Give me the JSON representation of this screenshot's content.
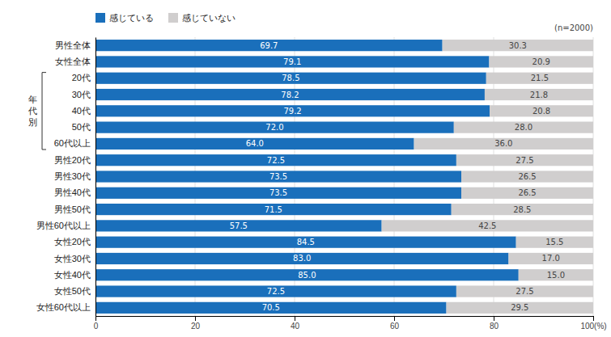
{
  "chart_data": {
    "type": "bar",
    "orientation": "horizontal",
    "stacked": true,
    "data_labels": true,
    "grid": true,
    "legend": "top-left",
    "categories": [
      "男性全体",
      "女性全体",
      "20代",
      "30代",
      "40代",
      "50代",
      "60代以上",
      "男性20代",
      "男性30代",
      "男性40代",
      "男性50代",
      "男性60代以上",
      "女性20代",
      "女性30代",
      "女性40代",
      "女性50代",
      "女性60代以上"
    ],
    "series": [
      {
        "name": "感じている",
        "color": "#1a6fbb",
        "values": [
          69.7,
          79.1,
          78.5,
          78.2,
          79.2,
          72.0,
          64.0,
          72.5,
          73.5,
          73.5,
          71.5,
          57.5,
          84.5,
          83.0,
          85.0,
          72.5,
          70.5
        ],
        "value_labels": [
          "69.7",
          "79.1",
          "78.5",
          "78.2",
          "79.2",
          "72.0",
          "64.0",
          "72.5",
          "73.5",
          "73.5",
          "71.5",
          "57.5",
          "84.5",
          "83.0",
          "85.0",
          "72.5",
          "70.5"
        ]
      },
      {
        "name": "感じていない",
        "color": "#d0cece",
        "values": [
          30.3,
          20.9,
          21.5,
          21.8,
          20.8,
          28.0,
          36.0,
          27.5,
          26.5,
          26.5,
          28.5,
          42.5,
          15.5,
          17.0,
          15.0,
          27.5,
          29.5
        ],
        "value_labels": [
          "30.3",
          "20.9",
          "21.5",
          "21.8",
          "20.8",
          "28.0",
          "36.0",
          "27.5",
          "26.5",
          "26.5",
          "28.5",
          "42.5",
          "15.5",
          "17.0",
          "15.0",
          "27.5",
          "29.5"
        ]
      }
    ],
    "xlim": [
      0,
      100
    ],
    "xticks": [
      0,
      20,
      40,
      60,
      80,
      {
        "value": 100,
        "label": "100(%)"
      }
    ],
    "annotations": [
      {
        "text": "(n=2000)"
      },
      {
        "text": "年\n代\n別",
        "categories": [
          "20代",
          "30代",
          "40代",
          "50代",
          "60代以上"
        ]
      }
    ]
  }
}
